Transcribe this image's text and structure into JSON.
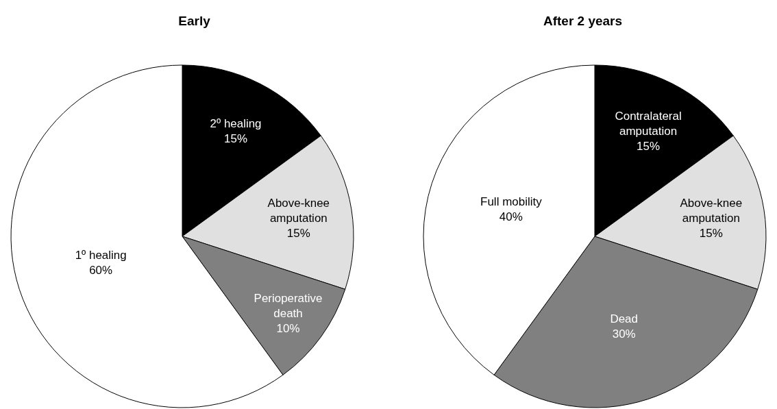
{
  "chart_data": [
    {
      "type": "pie",
      "title": "Early",
      "categories": [
        "2º healing",
        "Above-knee amputation",
        "Perioperative death",
        "1º healing"
      ],
      "values": [
        15,
        15,
        10,
        60
      ],
      "value_labels": [
        "15%",
        "15%",
        "10%",
        "60%"
      ],
      "colors": [
        "#000000",
        "#e0e0e0",
        "#808080",
        "#ffffff"
      ],
      "legend": false
    },
    {
      "type": "pie",
      "title": "After 2 years",
      "categories": [
        "Contralateral amputation",
        "Above-knee amputation",
        "Dead",
        "Full mobility"
      ],
      "values": [
        15,
        15,
        30,
        40
      ],
      "value_labels": [
        "15%",
        "15%",
        "30%",
        "40%"
      ],
      "colors": [
        "#000000",
        "#e0e0e0",
        "#808080",
        "#ffffff"
      ],
      "legend": false
    }
  ]
}
